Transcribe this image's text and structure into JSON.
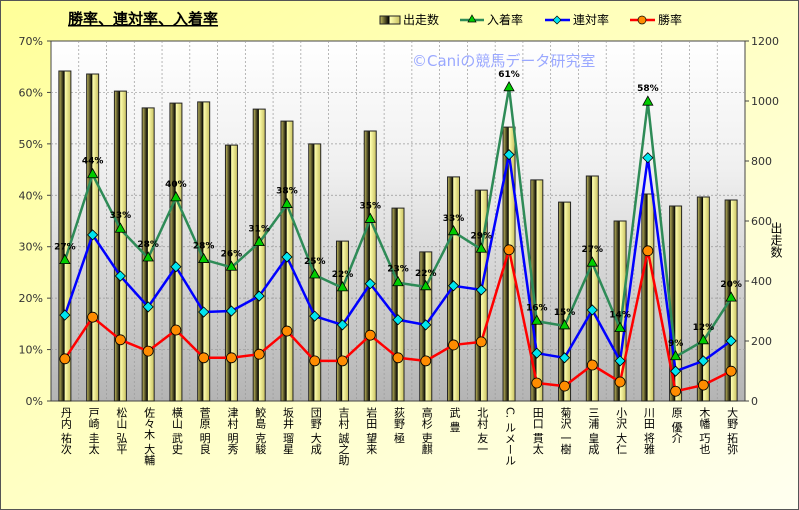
{
  "chart_data": {
    "type": "bar",
    "title": "勝率、連対率、入着率",
    "watermark": "©Caniの競馬データ研究室",
    "xlabel": "",
    "ylabel": "",
    "y2label": "出走数",
    "ylim": [
      0,
      70
    ],
    "y2lim": [
      0,
      1200
    ],
    "yticks": [
      "0%",
      "10%",
      "20%",
      "30%",
      "40%",
      "50%",
      "60%",
      "70%"
    ],
    "y2ticks": [
      "0",
      "200",
      "400",
      "600",
      "800",
      "1000",
      "1200"
    ],
    "grid": true,
    "legend_position": "top-right",
    "categories": [
      "丹内 祐次",
      "戸崎 圭太",
      "松山 弘平",
      "佐々木 大輔",
      "横山 武史",
      "菅原 明良",
      "津村 明秀",
      "鮫島 克駿",
      "坂井 瑠星",
      "団野 大成",
      "吉村 誠之助",
      "岩田 望来",
      "荻野 極",
      "高杉 吏麒",
      "武 豊",
      "北村 友一",
      "C. ルメール",
      "田口 貫太",
      "菊沢 一樹",
      "三浦 皇成",
      "小沢 大仁",
      "川田 将雅",
      "原 優介",
      "木幡 巧也",
      "大野 拓弥"
    ],
    "series": [
      {
        "name": "出走数",
        "type": "bar",
        "axis": "right",
        "color": "#f4ee8c",
        "values": [
          1100,
          1090,
          1033,
          977,
          993,
          997,
          853,
          973,
          933,
          857,
          533,
          900,
          643,
          497,
          747,
          703,
          913,
          737,
          663,
          750,
          600,
          690,
          650,
          680,
          670
        ]
      },
      {
        "name": "入着率",
        "type": "line",
        "axis": "left",
        "color": "#2e8b57",
        "marker": "triangle",
        "marker_color": "#00cc00",
        "values": [
          27.3,
          44.0,
          33.4,
          27.8,
          39.5,
          27.5,
          26.0,
          30.8,
          38.2,
          24.5,
          22.0,
          35.3,
          23.0,
          22.2,
          32.9,
          29.5,
          60.9,
          15.5,
          14.6,
          26.8,
          14.1,
          58.1,
          8.6,
          11.7,
          20.0
        ],
        "labels": [
          "27%",
          "44%",
          "33%",
          "28%",
          "40%",
          "28%",
          "26%",
          "31%",
          "38%",
          "25%",
          "22%",
          "35%",
          "23%",
          "22%",
          "33%",
          "29%",
          "61%",
          "16%",
          "15%",
          "27%",
          "14%",
          "58%",
          "9%",
          "12%",
          "20%"
        ]
      },
      {
        "name": "連対率",
        "type": "line",
        "axis": "left",
        "color": "#0000ff",
        "marker": "diamond",
        "marker_color": "#00e5ee",
        "values": [
          16.7,
          32.3,
          24.3,
          18.3,
          26.1,
          17.3,
          17.5,
          20.4,
          28.0,
          16.5,
          14.8,
          22.8,
          15.8,
          14.8,
          22.4,
          21.6,
          47.9,
          9.3,
          8.4,
          17.7,
          7.8,
          47.3,
          5.8,
          7.8,
          11.7
        ]
      },
      {
        "name": "勝率",
        "type": "line",
        "axis": "left",
        "color": "#ff0000",
        "marker": "circle",
        "marker_color": "#ff8c00",
        "values": [
          8.2,
          16.3,
          11.9,
          9.7,
          13.8,
          8.4,
          8.4,
          9.1,
          13.6,
          7.8,
          7.8,
          12.8,
          8.4,
          7.8,
          10.9,
          11.5,
          29.4,
          3.5,
          2.9,
          7.0,
          3.7,
          29.2,
          1.9,
          3.1,
          5.8
        ]
      }
    ]
  }
}
